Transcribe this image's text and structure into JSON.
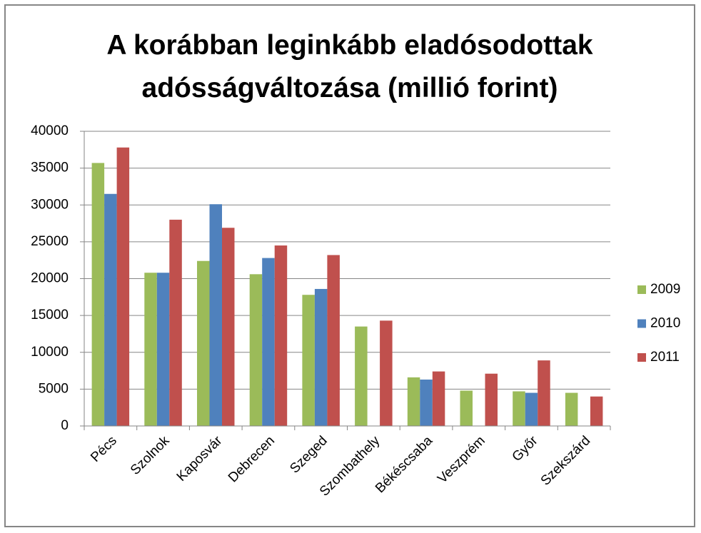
{
  "chart_data": {
    "type": "bar",
    "title": "A korábban leginkább eladósodottak adósságváltozása (millió forint)",
    "categories": [
      "Pécs",
      "Szolnok",
      "Kaposvár",
      "Debrecen",
      "Szeged",
      "Szombathely",
      "Békéscsaba",
      "Veszprém",
      "Győr",
      "Szekszárd"
    ],
    "series": [
      {
        "name": "2009",
        "color": "#9bbb59",
        "values": [
          35700,
          20800,
          22400,
          20600,
          17800,
          13500,
          6600,
          4800,
          4700,
          4500
        ]
      },
      {
        "name": "2010",
        "color": "#4f81bd",
        "values": [
          31500,
          20800,
          30100,
          22800,
          18600,
          null,
          6300,
          null,
          4500,
          null
        ]
      },
      {
        "name": "2011",
        "color": "#c0504d",
        "values": [
          37800,
          28000,
          26900,
          24500,
          23200,
          14300,
          7400,
          7100,
          8900,
          4000
        ]
      }
    ],
    "ylim": [
      0,
      40000
    ],
    "yticks": [
      0,
      5000,
      10000,
      15000,
      20000,
      25000,
      30000,
      35000,
      40000
    ],
    "grid": true,
    "legend": "right"
  }
}
